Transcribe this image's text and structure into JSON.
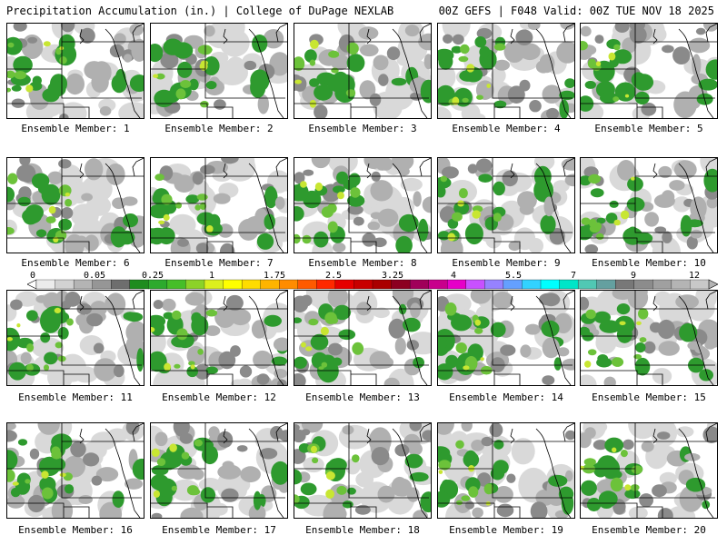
{
  "header": {
    "title": "Precipitation Accumulation (in.) | College of DuPage NEXLAB",
    "run_info": "00Z GEFS | F048 Valid: 00Z TUE NOV 18 2025"
  },
  "members": [
    {
      "label": "Ensemble Member: 1"
    },
    {
      "label": "Ensemble Member: 2"
    },
    {
      "label": "Ensemble Member: 3"
    },
    {
      "label": "Ensemble Member: 4"
    },
    {
      "label": "Ensemble Member: 5"
    },
    {
      "label": "Ensemble Member: 6"
    },
    {
      "label": "Ensemble Member: 7"
    },
    {
      "label": "Ensemble Member: 8"
    },
    {
      "label": "Ensemble Member: 9"
    },
    {
      "label": "Ensemble Member: 10"
    },
    {
      "label": "Ensemble Member: 11"
    },
    {
      "label": "Ensemble Member: 12"
    },
    {
      "label": "Ensemble Member: 13"
    },
    {
      "label": "Ensemble Member: 14"
    },
    {
      "label": "Ensemble Member: 15"
    },
    {
      "label": "Ensemble Member: 16"
    },
    {
      "label": "Ensemble Member: 17"
    },
    {
      "label": "Ensemble Member: 18"
    },
    {
      "label": "Ensemble Member: 19"
    },
    {
      "label": "Ensemble Member: 20"
    }
  ],
  "legend": {
    "labels": [
      "0",
      "0.05",
      "0.25",
      "1",
      "1.75",
      "2.5",
      "3.25",
      "4",
      "5.5",
      "7",
      "9",
      "12"
    ],
    "colors": [
      "#ebebeb",
      "#d2d2d2",
      "#b4b4b4",
      "#969696",
      "#6e6e6e",
      "#1e8c1e",
      "#2daa2d",
      "#46be28",
      "#8cd228",
      "#dcf01e",
      "#ffff00",
      "#ffdc00",
      "#ffb400",
      "#ff8c00",
      "#ff5a00",
      "#ff2800",
      "#e60000",
      "#c80000",
      "#aa0000",
      "#8c0020",
      "#a0005a",
      "#c8008c",
      "#e600c8",
      "#c850ff",
      "#9682ff",
      "#64a0ff",
      "#32d2ff",
      "#00ffff",
      "#00e6c8",
      "#50c8b4",
      "#64a0a0",
      "#787878",
      "#8c8c8c",
      "#a0a0a0",
      "#b4b4b4",
      "#c8c8c8"
    ]
  },
  "colors": {
    "light_gray": "#d9d9d9",
    "mid_gray": "#b0b0b0",
    "dark_gray": "#8a8a8a",
    "green": "#2e9a2e",
    "light_green": "#6cc23a",
    "yellow_green": "#c8e632",
    "yellow": "#f5f516"
  }
}
